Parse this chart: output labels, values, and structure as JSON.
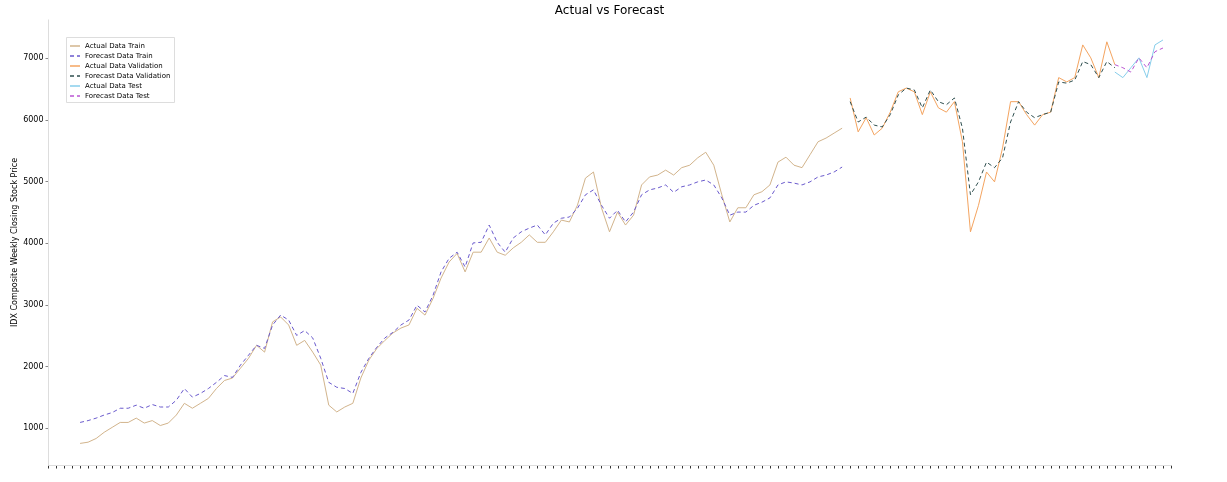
{
  "chart_data": {
    "type": "line",
    "title": "Actual vs Forecast",
    "ylabel": "IDX Composite Weekly Closing Stock Price",
    "categories": [
      null,
      null,
      null,
      null,
      null,
      null,
      null,
      null,
      null,
      null,
      null,
      null,
      null,
      null,
      null,
      null,
      null,
      null,
      null,
      null,
      null,
      null,
      null,
      null,
      null,
      null,
      null,
      null,
      null,
      null,
      null,
      null,
      null,
      null,
      null,
      null,
      null,
      null,
      null,
      null,
      null,
      null,
      null,
      null,
      null,
      null,
      null,
      null,
      null,
      null,
      null,
      null,
      null,
      null,
      null,
      null,
      null,
      null,
      null,
      null,
      null,
      null,
      null,
      null,
      null,
      null,
      null,
      null,
      null,
      null,
      null,
      null,
      null,
      null,
      null,
      null,
      null,
      null,
      null,
      null,
      null,
      null,
      null,
      null,
      null,
      null,
      null,
      null,
      null,
      null,
      null,
      null,
      null,
      null,
      null,
      null,
      null,
      null,
      null,
      null,
      null,
      null,
      null,
      null,
      null,
      null,
      null,
      null,
      null,
      null,
      null,
      null,
      null,
      null,
      null,
      null,
      null,
      null,
      null,
      null,
      null,
      null,
      null,
      null,
      null,
      null,
      null,
      null,
      null,
      null,
      null,
      null,
      null,
      null,
      null,
      null,
      null,
      null,
      null,
      null,
      null
    ],
    "series": [
      {
        "name": "Actual Data Train",
        "color": "#d2b48c",
        "line_style": "solid",
        "values": [
          null,
          null,
          null,
          null,
          750,
          770,
          830,
          930,
          1010,
          1090,
          1090,
          1160,
          1080,
          1120,
          1040,
          1080,
          1210,
          1400,
          1320,
          1400,
          1480,
          1640,
          1770,
          1810,
          1970,
          2130,
          2340,
          2230,
          2720,
          2800,
          2670,
          2340,
          2420,
          2230,
          2020,
          1370,
          1260,
          1340,
          1400,
          1810,
          2100,
          2290,
          2420,
          2540,
          2620,
          2670,
          2940,
          2830,
          3100,
          3430,
          3690,
          3830,
          3530,
          3850,
          3850,
          4080,
          3850,
          3800,
          3920,
          4010,
          4130,
          4010,
          4010,
          4180,
          4370,
          4340,
          4610,
          5050,
          5150,
          4570,
          4180,
          4500,
          4290,
          4450,
          4940,
          5070,
          5100,
          5180,
          5100,
          5220,
          5260,
          5380,
          5470,
          5260,
          4780,
          4340,
          4570,
          4570,
          4780,
          4830,
          4940,
          5310,
          5390,
          5260,
          5220,
          5430,
          5640,
          5700,
          5780,
          5860,
          null,
          null,
          null,
          null,
          null,
          null,
          null,
          null,
          null,
          null,
          null,
          null,
          null,
          null,
          null,
          null,
          null,
          null,
          null,
          null,
          null,
          null,
          null,
          null,
          null,
          null,
          null,
          null,
          null,
          null,
          null,
          null,
          null,
          null,
          null,
          null,
          null,
          null,
          null,
          null,
          null
        ]
      },
      {
        "name": "Forecast Data Train",
        "color": "#6a5acd",
        "line_style": "dashed",
        "values": [
          null,
          null,
          null,
          null,
          1090,
          1120,
          1160,
          1210,
          1250,
          1320,
          1320,
          1370,
          1320,
          1380,
          1340,
          1340,
          1450,
          1640,
          1500,
          1560,
          1640,
          1740,
          1850,
          1820,
          2020,
          2180,
          2340,
          2290,
          2670,
          2830,
          2750,
          2500,
          2580,
          2460,
          2130,
          1740,
          1660,
          1640,
          1560,
          1900,
          2130,
          2310,
          2460,
          2550,
          2670,
          2750,
          2990,
          2880,
          3150,
          3530,
          3750,
          3850,
          3610,
          4000,
          4010,
          4290,
          4010,
          3850,
          4080,
          4180,
          4240,
          4290,
          4130,
          4320,
          4400,
          4420,
          4560,
          4780,
          4860,
          4610,
          4400,
          4530,
          4340,
          4500,
          4780,
          4860,
          4890,
          4940,
          4820,
          4910,
          4940,
          4990,
          5020,
          4940,
          4730,
          4450,
          4500,
          4500,
          4610,
          4660,
          4730,
          4940,
          4990,
          4970,
          4940,
          4990,
          5070,
          5100,
          5150,
          5230,
          null,
          null,
          null,
          null,
          null,
          null,
          null,
          null,
          null,
          null,
          null,
          null,
          null,
          null,
          null,
          null,
          null,
          null,
          null,
          null,
          null,
          null,
          null,
          null,
          null,
          null,
          null,
          null,
          null,
          null,
          null,
          null,
          null,
          null,
          null,
          null,
          null,
          null,
          null,
          null,
          null
        ]
      },
      {
        "name": "Actual Data Validation",
        "color": "#f4a460",
        "line_style": "solid",
        "values": [
          null,
          null,
          null,
          null,
          null,
          null,
          null,
          null,
          null,
          null,
          null,
          null,
          null,
          null,
          null,
          null,
          null,
          null,
          null,
          null,
          null,
          null,
          null,
          null,
          null,
          null,
          null,
          null,
          null,
          null,
          null,
          null,
          null,
          null,
          null,
          null,
          null,
          null,
          null,
          null,
          null,
          null,
          null,
          null,
          null,
          null,
          null,
          null,
          null,
          null,
          null,
          null,
          null,
          null,
          null,
          null,
          null,
          null,
          null,
          null,
          null,
          null,
          null,
          null,
          null,
          null,
          null,
          null,
          null,
          null,
          null,
          null,
          null,
          null,
          null,
          null,
          null,
          null,
          null,
          null,
          null,
          null,
          null,
          null,
          null,
          null,
          null,
          null,
          null,
          null,
          null,
          null,
          null,
          null,
          null,
          null,
          null,
          null,
          null,
          null,
          6350,
          5800,
          6030,
          5750,
          5860,
          6120,
          6450,
          6510,
          6450,
          6080,
          6450,
          6190,
          6120,
          6290,
          5640,
          4180,
          4610,
          5150,
          4990,
          5540,
          6290,
          6290,
          6080,
          5910,
          6080,
          6120,
          6680,
          6610,
          6680,
          7210,
          7000,
          6680,
          7260,
          6890,
          null,
          null,
          null,
          null,
          null,
          null,
          null
        ]
      },
      {
        "name": "Forecast Data Validation",
        "color": "#2f4f4f",
        "line_style": "dashed",
        "values": [
          null,
          null,
          null,
          null,
          null,
          null,
          null,
          null,
          null,
          null,
          null,
          null,
          null,
          null,
          null,
          null,
          null,
          null,
          null,
          null,
          null,
          null,
          null,
          null,
          null,
          null,
          null,
          null,
          null,
          null,
          null,
          null,
          null,
          null,
          null,
          null,
          null,
          null,
          null,
          null,
          null,
          null,
          null,
          null,
          null,
          null,
          null,
          null,
          null,
          null,
          null,
          null,
          null,
          null,
          null,
          null,
          null,
          null,
          null,
          null,
          null,
          null,
          null,
          null,
          null,
          null,
          null,
          null,
          null,
          null,
          null,
          null,
          null,
          null,
          null,
          null,
          null,
          null,
          null,
          null,
          null,
          null,
          null,
          null,
          null,
          null,
          null,
          null,
          null,
          null,
          null,
          null,
          null,
          null,
          null,
          null,
          null,
          null,
          null,
          null,
          6290,
          5960,
          6040,
          5910,
          5880,
          6080,
          6400,
          6510,
          6480,
          6190,
          6480,
          6290,
          6240,
          6350,
          5860,
          4780,
          4990,
          5310,
          5220,
          5380,
          5960,
          6290,
          6120,
          6030,
          6080,
          6120,
          6610,
          6590,
          6640,
          6940,
          6890,
          6680,
          6940,
          6840,
          null,
          null,
          null,
          null,
          null,
          null,
          null
        ]
      },
      {
        "name": "Actual Data Test",
        "color": "#87ceeb",
        "line_style": "solid",
        "values": [
          null,
          null,
          null,
          null,
          null,
          null,
          null,
          null,
          null,
          null,
          null,
          null,
          null,
          null,
          null,
          null,
          null,
          null,
          null,
          null,
          null,
          null,
          null,
          null,
          null,
          null,
          null,
          null,
          null,
          null,
          null,
          null,
          null,
          null,
          null,
          null,
          null,
          null,
          null,
          null,
          null,
          null,
          null,
          null,
          null,
          null,
          null,
          null,
          null,
          null,
          null,
          null,
          null,
          null,
          null,
          null,
          null,
          null,
          null,
          null,
          null,
          null,
          null,
          null,
          null,
          null,
          null,
          null,
          null,
          null,
          null,
          null,
          null,
          null,
          null,
          null,
          null,
          null,
          null,
          null,
          null,
          null,
          null,
          null,
          null,
          null,
          null,
          null,
          null,
          null,
          null,
          null,
          null,
          null,
          null,
          null,
          null,
          null,
          null,
          null,
          null,
          null,
          null,
          null,
          null,
          null,
          null,
          null,
          null,
          null,
          null,
          null,
          null,
          null,
          null,
          null,
          null,
          null,
          null,
          null,
          null,
          null,
          null,
          null,
          null,
          null,
          null,
          null,
          null,
          null,
          null,
          null,
          null,
          6770,
          6680,
          6840,
          7000,
          6680,
          7210,
          7290,
          null
        ]
      },
      {
        "name": "Forecast Data Test",
        "color": "#ba55d3",
        "line_style": "dashed",
        "values": [
          null,
          null,
          null,
          null,
          null,
          null,
          null,
          null,
          null,
          null,
          null,
          null,
          null,
          null,
          null,
          null,
          null,
          null,
          null,
          null,
          null,
          null,
          null,
          null,
          null,
          null,
          null,
          null,
          null,
          null,
          null,
          null,
          null,
          null,
          null,
          null,
          null,
          null,
          null,
          null,
          null,
          null,
          null,
          null,
          null,
          null,
          null,
          null,
          null,
          null,
          null,
          null,
          null,
          null,
          null,
          null,
          null,
          null,
          null,
          null,
          null,
          null,
          null,
          null,
          null,
          null,
          null,
          null,
          null,
          null,
          null,
          null,
          null,
          null,
          null,
          null,
          null,
          null,
          null,
          null,
          null,
          null,
          null,
          null,
          null,
          null,
          null,
          null,
          null,
          null,
          null,
          null,
          null,
          null,
          null,
          null,
          null,
          null,
          null,
          null,
          null,
          null,
          null,
          null,
          null,
          null,
          null,
          null,
          null,
          null,
          null,
          null,
          null,
          null,
          null,
          null,
          null,
          null,
          null,
          null,
          null,
          null,
          null,
          null,
          null,
          null,
          null,
          null,
          null,
          null,
          null,
          null,
          null,
          6890,
          6840,
          6770,
          7000,
          6840,
          7100,
          7160,
          null
        ]
      }
    ],
    "ylim": [
      400,
      7630
    ],
    "yticks": [
      1000,
      2000,
      3000,
      4000,
      5000,
      6000,
      7000
    ],
    "grid": false,
    "legend": "top left",
    "tick_labels": "y"
  }
}
